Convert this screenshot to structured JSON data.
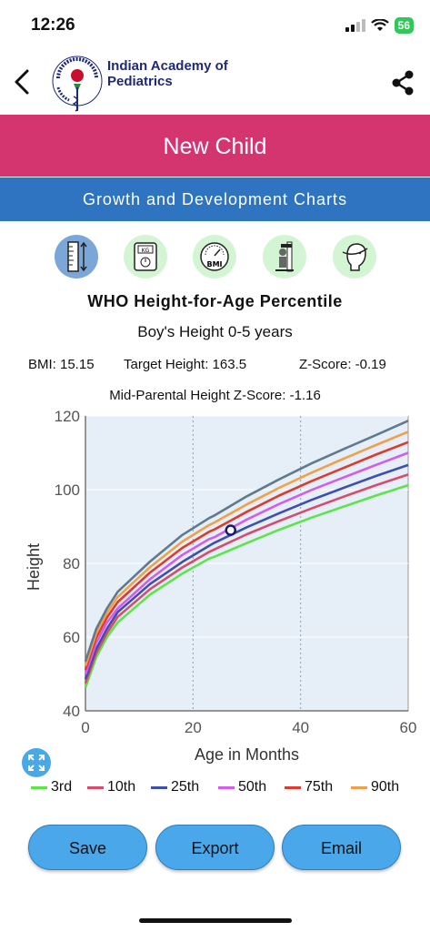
{
  "status": {
    "time": "12:26",
    "battery": "56"
  },
  "header": {
    "org_line1": "Indian Academy of",
    "org_line2": "Pediatrics"
  },
  "banner": {
    "title": "New Child"
  },
  "subbanner": {
    "title": "Growth and Development Charts"
  },
  "tools": [
    {
      "name": "height-icon",
      "selected": true
    },
    {
      "name": "weight-scale-icon",
      "label": "KG"
    },
    {
      "name": "bmi-icon",
      "label": "BMI"
    },
    {
      "name": "height-measure-icon"
    },
    {
      "name": "head-circumference-icon"
    }
  ],
  "chart_title": "WHO Height-for-Age Percentile",
  "chart_subtitle": "Boy's Height 0-5 years",
  "stats": {
    "bmi": "BMI: 15.15",
    "target": "Target Height: 163.5",
    "zscore": "Z-Score: -0.19"
  },
  "mid_parental": "Mid-Parental Height Z-Score: -1.16",
  "chart_data": {
    "type": "line",
    "title": "",
    "xlabel": "Age in Months",
    "ylabel": "Height",
    "xlim": [
      0,
      60
    ],
    "ylim": [
      40,
      120
    ],
    "xticks": [
      0,
      20,
      40,
      60
    ],
    "yticks": [
      40,
      60,
      80,
      100,
      120
    ],
    "grid": "dotted vertical at 20 and 40",
    "background": "#e6eff8",
    "x": [
      0,
      2,
      4,
      6,
      12,
      18,
      23,
      24,
      30,
      36,
      42,
      48,
      54,
      60
    ],
    "series": [
      {
        "name": "3rd",
        "color": "#5ee44a",
        "values": [
          46.3,
          54.5,
          60,
          64,
          71.5,
          77.2,
          81.3,
          81.8,
          85.5,
          89.1,
          92.4,
          95.4,
          98.4,
          101.2
        ]
      },
      {
        "name": "10th",
        "color": "#d94a6b",
        "values": [
          47.5,
          55.6,
          61.1,
          65.5,
          73,
          78.9,
          83.1,
          83.8,
          87.9,
          91.5,
          94.9,
          98.1,
          101.2,
          104.1
        ]
      },
      {
        "name": "25th",
        "color": "#3f4fb0",
        "values": [
          48.6,
          56.8,
          62.3,
          66.8,
          74.4,
          80.4,
          84.8,
          85.6,
          89.8,
          93.6,
          97.2,
          100.5,
          103.7,
          106.7
        ]
      },
      {
        "name": "50th",
        "color": "#d35cf0",
        "values": [
          49.9,
          58.4,
          63.9,
          67.8,
          75.7,
          82.3,
          86.6,
          87.1,
          91.9,
          96.1,
          99.9,
          103.3,
          106.7,
          110
        ]
      },
      {
        "name": "75th",
        "color": "#e03a2e",
        "values": [
          51.1,
          59.8,
          65.3,
          69.5,
          77.5,
          84.2,
          88.6,
          89.2,
          94,
          98.4,
          102.3,
          105.9,
          109.5,
          112.9
        ]
      },
      {
        "name": "90th",
        "color": "#f0a04a",
        "values": [
          52.2,
          61,
          66.6,
          70.9,
          79,
          85.9,
          90.4,
          91.1,
          96,
          100.5,
          104.6,
          108.4,
          112.1,
          115.7
        ]
      },
      {
        "name": "",
        "color": "#5f7a8e",
        "values": [
          53.4,
          62.2,
          67.8,
          72.3,
          80.5,
          87.7,
          92.3,
          93,
          98.2,
          102.8,
          107.1,
          111,
          114.8,
          118.7
        ]
      }
    ],
    "point": {
      "x": 27,
      "y": 89
    }
  },
  "legend": [
    "3rd",
    "10th",
    "25th",
    "50th",
    "75th",
    "90th"
  ],
  "buttons": {
    "save": "Save",
    "export": "Export",
    "email": "Email"
  }
}
